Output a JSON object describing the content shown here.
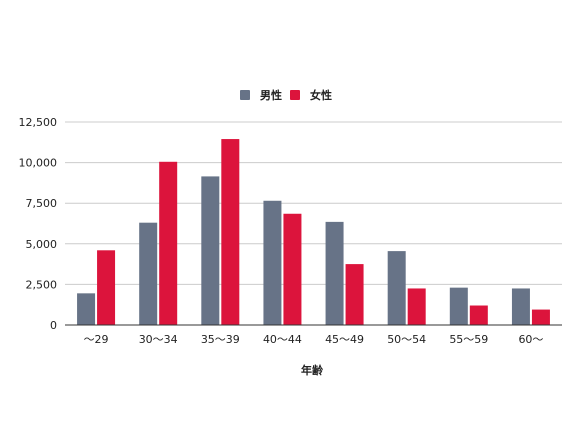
{
  "chart_data": {
    "type": "bar",
    "title": "",
    "xlabel": "年齢",
    "ylabel": "",
    "categories": [
      "〜29",
      "30〜34",
      "35〜39",
      "40〜44",
      "45〜49",
      "50〜54",
      "55〜59",
      "60〜"
    ],
    "series": [
      {
        "name": "男性",
        "color": "#677387",
        "values": [
          1950,
          6300,
          9150,
          7650,
          6350,
          4550,
          2300,
          2250
        ]
      },
      {
        "name": "女性",
        "color": "#dc143c",
        "values": [
          4600,
          10050,
          11450,
          6850,
          3750,
          2250,
          1200,
          950
        ]
      }
    ],
    "yticks": [
      "0",
      "2,500",
      "5,000",
      "7,500",
      "10,000",
      "12,500"
    ],
    "ylim": [
      0,
      12500
    ],
    "grid": true,
    "legend": "top-center"
  }
}
